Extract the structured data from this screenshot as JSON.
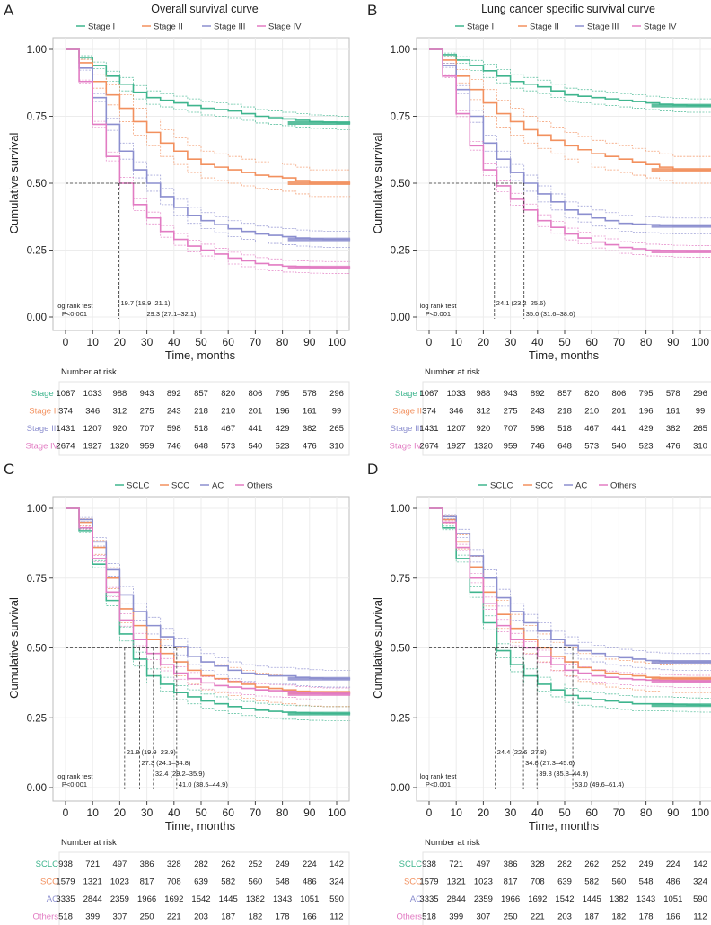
{
  "colors": {
    "green": "#3fb58e",
    "orange": "#f2905e",
    "purple": "#8c8fcf",
    "pink": "#e27cc3"
  },
  "chart_data": [
    {
      "type": "line",
      "panel_label": "A",
      "title": "Overall survival curve",
      "xlabel": "Time, months",
      "ylabel": "Cumulative survival",
      "xlim": [
        0,
        105
      ],
      "ylim": [
        0,
        1
      ],
      "x_ticks": [
        "0",
        "10",
        "20",
        "30",
        "40",
        "50",
        "60",
        "70",
        "80",
        "90",
        "100"
      ],
      "y_ticks": [
        "0.00",
        "0.25",
        "0.50",
        "0.75",
        "1.00"
      ],
      "grid": true,
      "legend_position": "top",
      "x": [
        0,
        5,
        10,
        15,
        20,
        25,
        30,
        35,
        40,
        45,
        50,
        55,
        60,
        65,
        70,
        75,
        80,
        85,
        90,
        95,
        100,
        105
      ],
      "series": [
        {
          "name": "Stage I",
          "color": "#3fb58e",
          "values": [
            1,
            0.97,
            0.94,
            0.9,
            0.87,
            0.84,
            0.82,
            0.81,
            0.8,
            0.79,
            0.78,
            0.775,
            0.77,
            0.76,
            0.75,
            0.745,
            0.74,
            0.735,
            0.73,
            0.728,
            0.725,
            0.725
          ]
        },
        {
          "name": "Stage II",
          "color": "#f2905e",
          "values": [
            1,
            0.95,
            0.88,
            0.83,
            0.78,
            0.73,
            0.69,
            0.65,
            0.62,
            0.59,
            0.57,
            0.56,
            0.55,
            0.54,
            0.53,
            0.525,
            0.52,
            0.51,
            0.5,
            0.5,
            0.5,
            0.5
          ]
        },
        {
          "name": "Stage III",
          "color": "#8c8fcf",
          "values": [
            1,
            0.93,
            0.82,
            0.72,
            0.62,
            0.55,
            0.5,
            0.45,
            0.41,
            0.38,
            0.36,
            0.345,
            0.33,
            0.32,
            0.31,
            0.305,
            0.3,
            0.295,
            0.292,
            0.29,
            0.29,
            0.29
          ]
        },
        {
          "name": "Stage IV",
          "color": "#e27cc3",
          "values": [
            1,
            0.88,
            0.72,
            0.6,
            0.5,
            0.42,
            0.37,
            0.32,
            0.29,
            0.265,
            0.25,
            0.235,
            0.22,
            0.21,
            0.2,
            0.195,
            0.19,
            0.188,
            0.186,
            0.185,
            0.185,
            0.185
          ]
        }
      ],
      "medians": [
        {
          "value": 19.7,
          "label": "19.7 (18.9–21.1)"
        },
        {
          "value": 29.3,
          "label": "29.3 (27.1–32.1)"
        }
      ],
      "test_label": "log rank test",
      "p_label": "P<0.001",
      "risk_title": "Number at risk",
      "risk_table": [
        {
          "name": "Stage I",
          "color": "#3fb58e",
          "values": [
            "1067",
            "1033",
            "988",
            "943",
            "892",
            "857",
            "820",
            "806",
            "795",
            "578",
            "296"
          ]
        },
        {
          "name": "Stage II",
          "color": "#f2905e",
          "values": [
            "374",
            "346",
            "312",
            "275",
            "243",
            "218",
            "210",
            "201",
            "196",
            "161",
            "99"
          ]
        },
        {
          "name": "Stage III",
          "color": "#8c8fcf",
          "values": [
            "1431",
            "1207",
            "920",
            "707",
            "598",
            "518",
            "467",
            "441",
            "429",
            "382",
            "265"
          ]
        },
        {
          "name": "Stage IV",
          "color": "#e27cc3",
          "values": [
            "2674",
            "1927",
            "1320",
            "959",
            "746",
            "648",
            "573",
            "540",
            "523",
            "476",
            "310"
          ]
        }
      ]
    },
    {
      "type": "line",
      "panel_label": "B",
      "title": "Lung cancer specific survival curve",
      "xlabel": "Time, months",
      "ylabel": "Cumulative survival",
      "xlim": [
        0,
        105
      ],
      "ylim": [
        0,
        1
      ],
      "x_ticks": [
        "0",
        "10",
        "20",
        "30",
        "40",
        "50",
        "60",
        "70",
        "80",
        "90",
        "100"
      ],
      "y_ticks": [
        "0.00",
        "0.25",
        "0.50",
        "0.75",
        "1.00"
      ],
      "grid": true,
      "legend_position": "top",
      "x": [
        0,
        5,
        10,
        15,
        20,
        25,
        30,
        35,
        40,
        45,
        50,
        55,
        60,
        65,
        70,
        75,
        80,
        85,
        90,
        95,
        100,
        105
      ],
      "series": [
        {
          "name": "Stage I",
          "color": "#3fb58e",
          "values": [
            1,
            0.98,
            0.96,
            0.94,
            0.92,
            0.9,
            0.88,
            0.87,
            0.86,
            0.845,
            0.83,
            0.825,
            0.82,
            0.815,
            0.81,
            0.805,
            0.8,
            0.795,
            0.792,
            0.79,
            0.79,
            0.79
          ]
        },
        {
          "name": "Stage II",
          "color": "#f2905e",
          "values": [
            1,
            0.96,
            0.9,
            0.85,
            0.8,
            0.76,
            0.73,
            0.7,
            0.68,
            0.66,
            0.64,
            0.625,
            0.61,
            0.6,
            0.59,
            0.58,
            0.57,
            0.56,
            0.55,
            0.55,
            0.55,
            0.55
          ]
        },
        {
          "name": "Stage III",
          "color": "#8c8fcf",
          "values": [
            1,
            0.94,
            0.85,
            0.75,
            0.65,
            0.59,
            0.54,
            0.5,
            0.46,
            0.43,
            0.4,
            0.385,
            0.37,
            0.36,
            0.35,
            0.347,
            0.345,
            0.342,
            0.34,
            0.34,
            0.34,
            0.34
          ]
        },
        {
          "name": "Stage IV",
          "color": "#e27cc3",
          "values": [
            1,
            0.9,
            0.76,
            0.64,
            0.55,
            0.49,
            0.44,
            0.4,
            0.36,
            0.335,
            0.31,
            0.295,
            0.28,
            0.27,
            0.26,
            0.255,
            0.25,
            0.248,
            0.246,
            0.245,
            0.245,
            0.245
          ]
        }
      ],
      "medians": [
        {
          "value": 24.1,
          "label": "24.1 (23.2–25.6)"
        },
        {
          "value": 35.0,
          "label": "35.0 (31.6–38.6)"
        }
      ],
      "test_label": "log rank test",
      "p_label": "P<0.001",
      "risk_title": "Number at risk",
      "risk_table": [
        {
          "name": "Stage I",
          "color": "#3fb58e",
          "values": [
            "1067",
            "1033",
            "988",
            "943",
            "892",
            "857",
            "820",
            "806",
            "795",
            "578",
            "296"
          ]
        },
        {
          "name": "Stage II",
          "color": "#f2905e",
          "values": [
            "374",
            "346",
            "312",
            "275",
            "243",
            "218",
            "210",
            "201",
            "196",
            "161",
            "99"
          ]
        },
        {
          "name": "Stage III",
          "color": "#8c8fcf",
          "values": [
            "1431",
            "1207",
            "920",
            "707",
            "598",
            "518",
            "467",
            "441",
            "429",
            "382",
            "265"
          ]
        },
        {
          "name": "Stage IV",
          "color": "#e27cc3",
          "values": [
            "2674",
            "1927",
            "1320",
            "959",
            "746",
            "648",
            "573",
            "540",
            "523",
            "476",
            "310"
          ]
        }
      ]
    },
    {
      "type": "line",
      "panel_label": "C",
      "title": "",
      "xlabel": "Time, months",
      "ylabel": "Cumulative survival",
      "xlim": [
        0,
        105
      ],
      "ylim": [
        0,
        1
      ],
      "x_ticks": [
        "0",
        "10",
        "20",
        "30",
        "40",
        "50",
        "60",
        "70",
        "80",
        "90",
        "100"
      ],
      "y_ticks": [
        "0.00",
        "0.25",
        "0.50",
        "0.75",
        "1.00"
      ],
      "grid": true,
      "legend_position": "top",
      "x": [
        0,
        5,
        10,
        15,
        20,
        25,
        30,
        35,
        40,
        45,
        50,
        55,
        60,
        65,
        70,
        75,
        80,
        85,
        90,
        95,
        100,
        105
      ],
      "series": [
        {
          "name": "SCLC",
          "color": "#3fb58e",
          "values": [
            1,
            0.92,
            0.8,
            0.67,
            0.55,
            0.46,
            0.4,
            0.37,
            0.34,
            0.325,
            0.31,
            0.3,
            0.29,
            0.283,
            0.277,
            0.273,
            0.27,
            0.268,
            0.266,
            0.265,
            0.265,
            0.265
          ]
        },
        {
          "name": "SCC",
          "color": "#f2905e",
          "values": [
            1,
            0.95,
            0.86,
            0.75,
            0.64,
            0.58,
            0.53,
            0.48,
            0.45,
            0.42,
            0.4,
            0.39,
            0.38,
            0.37,
            0.36,
            0.355,
            0.35,
            0.345,
            0.342,
            0.34,
            0.34,
            0.34
          ]
        },
        {
          "name": "AC",
          "color": "#8c8fcf",
          "values": [
            1,
            0.96,
            0.88,
            0.78,
            0.69,
            0.63,
            0.58,
            0.54,
            0.505,
            0.47,
            0.45,
            0.435,
            0.42,
            0.41,
            0.405,
            0.4,
            0.4,
            0.395,
            0.392,
            0.39,
            0.39,
            0.39
          ]
        },
        {
          "name": "Others",
          "color": "#e27cc3",
          "values": [
            1,
            0.93,
            0.82,
            0.7,
            0.6,
            0.53,
            0.48,
            0.44,
            0.41,
            0.39,
            0.375,
            0.365,
            0.36,
            0.355,
            0.35,
            0.347,
            0.345,
            0.34,
            0.337,
            0.335,
            0.335,
            0.335
          ]
        }
      ],
      "medians": [
        {
          "value": 21.8,
          "label": "21.8 (19.9–23.9)"
        },
        {
          "value": 27.3,
          "label": "27.3 (24.1–34.8)"
        },
        {
          "value": 32.4,
          "label": "32.4 (29.2–35.9)"
        },
        {
          "value": 41.0,
          "label": "41.0 (38.5–44.9)"
        }
      ],
      "test_label": "log rank test",
      "p_label": "P<0.001",
      "risk_title": "Number at risk",
      "risk_table": [
        {
          "name": "SCLC",
          "color": "#3fb58e",
          "values": [
            "938",
            "721",
            "497",
            "386",
            "328",
            "282",
            "262",
            "252",
            "249",
            "224",
            "142"
          ]
        },
        {
          "name": "SCC",
          "color": "#f2905e",
          "values": [
            "1579",
            "1321",
            "1023",
            "817",
            "708",
            "639",
            "582",
            "560",
            "548",
            "486",
            "324"
          ]
        },
        {
          "name": "AC",
          "color": "#8c8fcf",
          "values": [
            "3335",
            "2844",
            "2359",
            "1966",
            "1692",
            "1542",
            "1445",
            "1382",
            "1343",
            "1051",
            "590"
          ]
        },
        {
          "name": "Others",
          "color": "#e27cc3",
          "values": [
            "518",
            "399",
            "307",
            "250",
            "221",
            "203",
            "187",
            "182",
            "178",
            "166",
            "112"
          ]
        }
      ]
    },
    {
      "type": "line",
      "panel_label": "D",
      "title": "",
      "xlabel": "Time, months",
      "ylabel": "Cumulative survival",
      "xlim": [
        0,
        105
      ],
      "ylim": [
        0,
        1
      ],
      "x_ticks": [
        "0",
        "10",
        "20",
        "30",
        "40",
        "50",
        "60",
        "70",
        "80",
        "90",
        "100"
      ],
      "y_ticks": [
        "0.00",
        "0.25",
        "0.50",
        "0.75",
        "1.00"
      ],
      "grid": true,
      "legend_position": "top",
      "x": [
        0,
        5,
        10,
        15,
        20,
        25,
        30,
        35,
        40,
        45,
        50,
        55,
        60,
        65,
        70,
        75,
        80,
        85,
        90,
        95,
        100,
        105
      ],
      "series": [
        {
          "name": "SCLC",
          "color": "#3fb58e",
          "values": [
            1,
            0.93,
            0.82,
            0.7,
            0.59,
            0.49,
            0.44,
            0.4,
            0.37,
            0.35,
            0.33,
            0.32,
            0.315,
            0.31,
            0.305,
            0.3,
            0.3,
            0.3,
            0.298,
            0.296,
            0.295,
            0.295
          ]
        },
        {
          "name": "SCC",
          "color": "#f2905e",
          "values": [
            1,
            0.96,
            0.88,
            0.79,
            0.7,
            0.62,
            0.57,
            0.53,
            0.5,
            0.47,
            0.45,
            0.43,
            0.42,
            0.41,
            0.405,
            0.4,
            0.395,
            0.392,
            0.39,
            0.39,
            0.39,
            0.39
          ]
        },
        {
          "name": "AC",
          "color": "#8c8fcf",
          "values": [
            1,
            0.97,
            0.91,
            0.83,
            0.75,
            0.68,
            0.63,
            0.59,
            0.56,
            0.53,
            0.51,
            0.49,
            0.48,
            0.47,
            0.465,
            0.46,
            0.455,
            0.452,
            0.45,
            0.45,
            0.45,
            0.45
          ]
        },
        {
          "name": "Others",
          "color": "#e27cc3",
          "values": [
            1,
            0.95,
            0.86,
            0.75,
            0.66,
            0.58,
            0.53,
            0.5,
            0.47,
            0.44,
            0.42,
            0.41,
            0.4,
            0.395,
            0.39,
            0.387,
            0.385,
            0.383,
            0.381,
            0.38,
            0.38,
            0.38
          ]
        }
      ],
      "medians": [
        {
          "value": 24.4,
          "label": "24.4 (22.6–27.8)"
        },
        {
          "value": 34.8,
          "label": "34.8 (27.3–45.6)"
        },
        {
          "value": 39.8,
          "label": "39.8 (35.8–44.9)"
        },
        {
          "value": 53.0,
          "label": "53.0 (49.6–61.4)"
        }
      ],
      "test_label": "log rank test",
      "p_label": "P<0.001",
      "risk_title": "Number at risk",
      "risk_table": [
        {
          "name": "SCLC",
          "color": "#3fb58e",
          "values": [
            "938",
            "721",
            "497",
            "386",
            "328",
            "282",
            "262",
            "252",
            "249",
            "224",
            "142"
          ]
        },
        {
          "name": "SCC",
          "color": "#f2905e",
          "values": [
            "1579",
            "1321",
            "1023",
            "817",
            "708",
            "639",
            "582",
            "560",
            "548",
            "486",
            "324"
          ]
        },
        {
          "name": "AC",
          "color": "#8c8fcf",
          "values": [
            "3335",
            "2844",
            "2359",
            "1966",
            "1692",
            "1542",
            "1445",
            "1382",
            "1343",
            "1051",
            "590"
          ]
        },
        {
          "name": "Others",
          "color": "#e27cc3",
          "values": [
            "518",
            "399",
            "307",
            "250",
            "221",
            "203",
            "187",
            "182",
            "178",
            "166",
            "112"
          ]
        }
      ]
    }
  ]
}
